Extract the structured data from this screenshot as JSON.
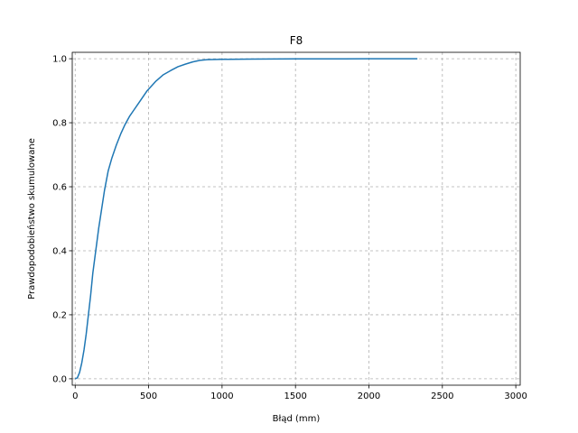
{
  "chart_data": {
    "type": "line",
    "title": "F8",
    "xlabel": "Błąd (mm)",
    "ylabel": "Prawdopodobieństwo skumulowane",
    "xlim": [
      -20,
      3030
    ],
    "ylim": [
      -0.02,
      1.02
    ],
    "grid": true,
    "x_ticks": [
      0,
      500,
      1000,
      1500,
      2000,
      2500,
      3000
    ],
    "y_ticks": [
      0.0,
      0.2,
      0.4,
      0.6,
      0.8,
      1.0
    ],
    "x_tick_labels": [
      "0",
      "500",
      "1000",
      "1500",
      "2000",
      "2500",
      "3000"
    ],
    "y_tick_labels": [
      "0.0",
      "0.2",
      "0.4",
      "0.6",
      "0.8",
      "1.0"
    ],
    "line_color": "#1f77b4",
    "series": [
      {
        "x": [
          0,
          15,
          30,
          45,
          60,
          75,
          90,
          105,
          120,
          140,
          160,
          180,
          200,
          225,
          250,
          280,
          310,
          340,
          370,
          400,
          430,
          460,
          490,
          520,
          550,
          600,
          650,
          700,
          750,
          800,
          850,
          900,
          1000,
          1200,
          1500,
          2000,
          2330
        ],
        "y": [
          0.0,
          0.003,
          0.02,
          0.05,
          0.09,
          0.14,
          0.2,
          0.26,
          0.33,
          0.4,
          0.47,
          0.53,
          0.59,
          0.65,
          0.69,
          0.73,
          0.765,
          0.795,
          0.82,
          0.84,
          0.86,
          0.88,
          0.9,
          0.915,
          0.93,
          0.95,
          0.963,
          0.975,
          0.983,
          0.99,
          0.995,
          0.997,
          0.998,
          0.999,
          0.9995,
          0.9998,
          1.0
        ]
      }
    ]
  }
}
